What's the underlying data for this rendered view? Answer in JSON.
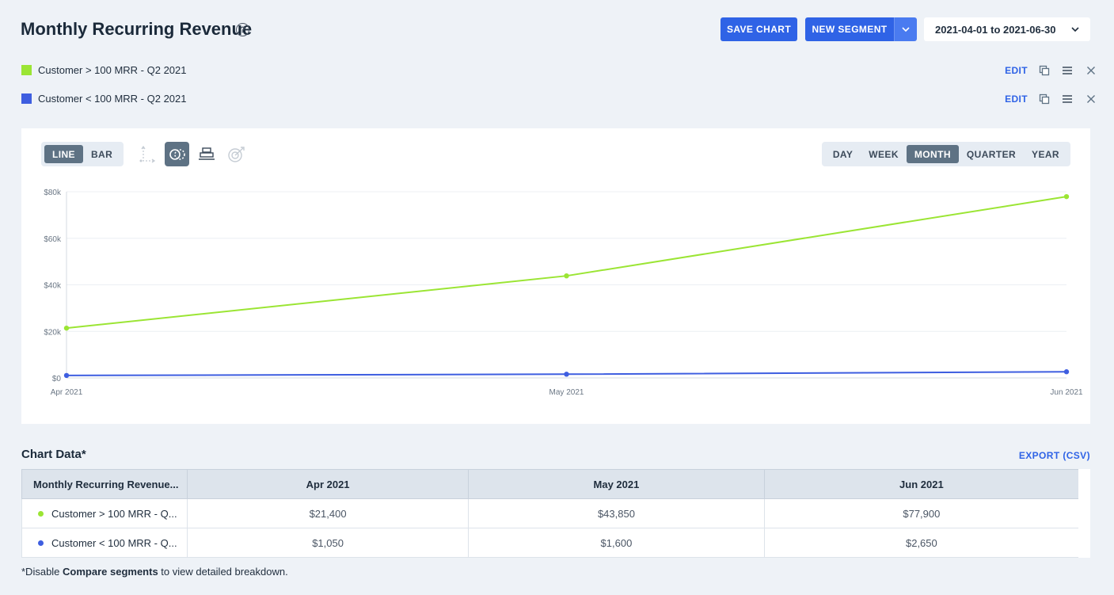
{
  "header": {
    "title": "Monthly Recurring Revenue",
    "help_glyph": "?",
    "save_label": "SAVE CHART",
    "segment_label": "NEW SEGMENT",
    "date_range": "2021-04-01 to 2021-06-30"
  },
  "segments": [
    {
      "label": "Customer > 100 MRR - Q2 2021",
      "color": "#9be534",
      "edit": "EDIT"
    },
    {
      "label": "Customer < 100 MRR - Q2 2021",
      "color": "#3e5ee0",
      "edit": "EDIT"
    }
  ],
  "chart_controls": {
    "chart_types": [
      "LINE",
      "BAR"
    ],
    "active_chart_type": "LINE",
    "periods": [
      "DAY",
      "WEEK",
      "MONTH",
      "QUARTER",
      "YEAR"
    ],
    "active_period": "MONTH",
    "tools": [
      "axis-icon",
      "compare-segments-icon",
      "stack-icon",
      "goal-icon"
    ],
    "active_tool": "compare-segments-icon"
  },
  "chart_data": {
    "type": "line",
    "categories": [
      "Apr 2021",
      "May 2021",
      "Jun 2021"
    ],
    "series": [
      {
        "name": "Customer > 100 MRR - Q2 2021",
        "color": "#9be534",
        "values": [
          21400,
          43850,
          77900
        ]
      },
      {
        "name": "Customer < 100 MRR - Q2 2021",
        "color": "#3e5ee0",
        "values": [
          1050,
          1600,
          2650
        ]
      }
    ],
    "ylim": [
      0,
      80000
    ],
    "yticks": [
      0,
      20000,
      40000,
      60000,
      80000
    ],
    "ytick_labels": [
      "$0",
      "$20k",
      "$40k",
      "$60k",
      "$80k"
    ],
    "grid": true,
    "legend": "none"
  },
  "table": {
    "title": "Chart Data*",
    "export": "EXPORT (CSV)",
    "header_first": "Monthly Recurring Revenue...",
    "columns": [
      "Apr 2021",
      "May 2021",
      "Jun 2021"
    ],
    "rows": [
      {
        "label": "Customer > 100 MRR - Q...",
        "color": "#9be534",
        "values": [
          "$21,400",
          "$43,850",
          "$77,900"
        ]
      },
      {
        "label": "Customer < 100 MRR - Q...",
        "color": "#3e5ee0",
        "values": [
          "$1,050",
          "$1,600",
          "$2,650"
        ]
      }
    ]
  },
  "footnote": {
    "prefix": "*Disable ",
    "bold": "Compare segments",
    "suffix": " to view detailed breakdown."
  }
}
